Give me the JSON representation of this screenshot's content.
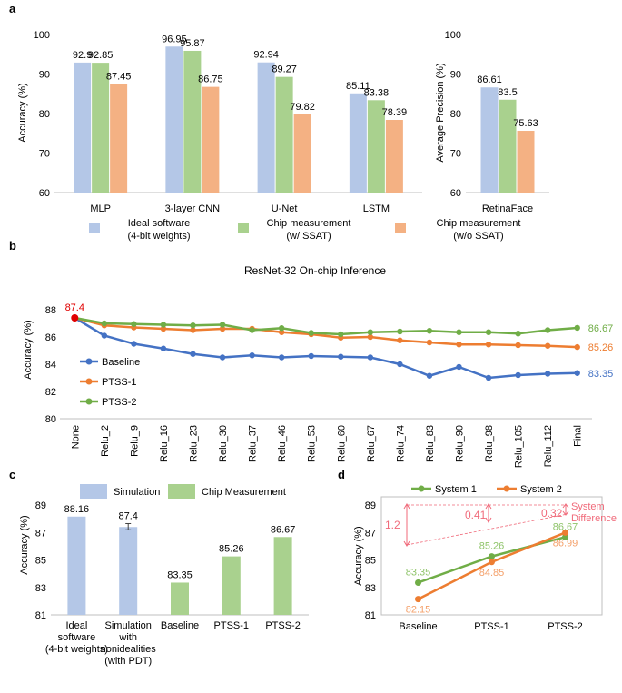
{
  "panels": {
    "a": "a",
    "b": "b",
    "c": "c",
    "d": "d"
  },
  "colors": {
    "blue": "#4472c4",
    "orange": "#ed7d31",
    "green": "#70ad47",
    "lightblue": "#b4c7e7",
    "lightgreen": "#a9d18e",
    "lightorange": "#f4b183",
    "red": "#e00000",
    "pink": "#f06a7a"
  },
  "chart_data": [
    {
      "id": "a-main",
      "type": "bar",
      "categories": [
        "MLP",
        "3-layer CNN",
        "U-Net",
        "LSTM"
      ],
      "series": [
        {
          "name": "Ideal software (4-bit weights)",
          "values": [
            92.9,
            96.95,
            92.94,
            85.11
          ]
        },
        {
          "name": "Chip measurement (w/ SSAT)",
          "values": [
            92.85,
            95.87,
            89.27,
            83.38
          ]
        },
        {
          "name": "Chip measurement (w/o SSAT)",
          "values": [
            87.45,
            86.75,
            79.82,
            78.39
          ]
        }
      ],
      "value_labels": [
        [
          "92.9",
          "96.95",
          "92.94",
          "85.11"
        ],
        [
          "92.85",
          "95.87",
          "89.27",
          "83.38"
        ],
        [
          "87.45",
          "86.75",
          "79.82",
          "78.39"
        ]
      ],
      "ylabel": "Accuracy (%)",
      "ylim": [
        60,
        100
      ],
      "yticks": [
        "60",
        "70",
        "80",
        "90",
        "100"
      ]
    },
    {
      "id": "a-retina",
      "type": "bar",
      "categories": [
        "RetinaFace"
      ],
      "series": [
        {
          "name": "Ideal software (4-bit weights)",
          "values": [
            86.61
          ]
        },
        {
          "name": "Chip measurement (w/ SSAT)",
          "values": [
            83.5
          ]
        },
        {
          "name": "Chip measurement (w/o SSAT)",
          "values": [
            75.63
          ]
        }
      ],
      "value_labels": [
        [
          "86.61"
        ],
        [
          "83.5"
        ],
        [
          "75.63"
        ]
      ],
      "ylabel": "Average Precision (%)",
      "ylim": [
        60,
        100
      ],
      "yticks": [
        "60",
        "70",
        "80",
        "90",
        "100"
      ],
      "legend": [
        {
          "line1": "Ideal software",
          "line2": "(4-bit weights)"
        },
        {
          "line1": "Chip measurement",
          "line2": "(w/ SSAT)"
        },
        {
          "line1": "Chip measurement",
          "line2": "(w/o SSAT)"
        }
      ]
    },
    {
      "id": "b",
      "type": "line",
      "title": "ResNet-32 On-chip Inference",
      "categories": [
        "None",
        "Relu_2",
        "Relu_9",
        "Relu_16",
        "Relu_23",
        "Relu_30",
        "Relu_37",
        "Relu_46",
        "Relu_53",
        "Relu_60",
        "Relu_67",
        "Relu_74",
        "Relu_83",
        "Relu_90",
        "Relu_98",
        "Relu_105",
        "Relu_112",
        "Final"
      ],
      "series": [
        {
          "name": "Baseline",
          "values": [
            87.4,
            86.1,
            85.5,
            85.15,
            84.75,
            84.5,
            84.65,
            84.5,
            84.6,
            84.55,
            84.5,
            84.0,
            83.15,
            83.8,
            83.0,
            83.2,
            83.3,
            83.35
          ]
        },
        {
          "name": "PTSS-1",
          "values": [
            87.4,
            86.85,
            86.7,
            86.6,
            86.5,
            86.6,
            86.6,
            86.35,
            86.2,
            85.95,
            86.0,
            85.75,
            85.6,
            85.45,
            85.45,
            85.4,
            85.35,
            85.26
          ]
        },
        {
          "name": "PTSS-2",
          "values": [
            87.4,
            87.0,
            86.95,
            86.9,
            86.85,
            86.9,
            86.5,
            86.65,
            86.3,
            86.2,
            86.35,
            86.4,
            86.45,
            86.35,
            86.35,
            86.25,
            86.5,
            86.67
          ]
        }
      ],
      "start_label": "87.4",
      "end_labels": [
        "83.35",
        "85.26",
        "86.67"
      ],
      "ylabel": "Accuracy (%)",
      "ylim": [
        80,
        89
      ],
      "yticks": [
        "80",
        "82",
        "84",
        "86",
        "88"
      ]
    },
    {
      "id": "c",
      "type": "bar",
      "categories": [
        [
          "Ideal",
          "software",
          "(4-bit weights)"
        ],
        [
          "Simulation",
          "with",
          "nonidealities",
          "(with PDT)"
        ],
        [
          "Baseline"
        ],
        [
          "PTSS-1"
        ],
        [
          "PTSS-2"
        ]
      ],
      "values": [
        88.16,
        87.4,
        83.35,
        85.26,
        86.67
      ],
      "value_labels": [
        "88.16",
        "87.4",
        "83.35",
        "85.26",
        "86.67"
      ],
      "bar_series": [
        "Simulation",
        "Simulation",
        "Chip Measurement",
        "Chip Measurement",
        "Chip Measurement"
      ],
      "error_bar": {
        "index": 1,
        "low": 87.2,
        "high": 87.65
      },
      "legend": [
        "Simulation",
        "Chip Measurement"
      ],
      "ylabel": "Accuracy (%)",
      "ylim": [
        81,
        89.6
      ],
      "yticks": [
        "81",
        "83",
        "85",
        "87",
        "89"
      ]
    },
    {
      "id": "d",
      "type": "line",
      "categories": [
        "Baseline",
        "PTSS-1",
        "PTSS-2"
      ],
      "series": [
        {
          "name": "System 1",
          "values": [
            83.35,
            85.26,
            86.67
          ]
        },
        {
          "name": "System 2",
          "values": [
            82.15,
            84.85,
            86.99
          ]
        }
      ],
      "value_labels": [
        [
          "83.35",
          "85.26",
          "86.67"
        ],
        [
          "82.15",
          "84.85",
          "86.99"
        ]
      ],
      "differences": [
        "1.2",
        "0.41",
        "0.32"
      ],
      "annotation": [
        "System",
        "Difference"
      ],
      "ylabel": "Accuracy (%)",
      "ylim": [
        81,
        89.6
      ],
      "yticks": [
        "81",
        "83",
        "85",
        "87",
        "89"
      ]
    }
  ]
}
